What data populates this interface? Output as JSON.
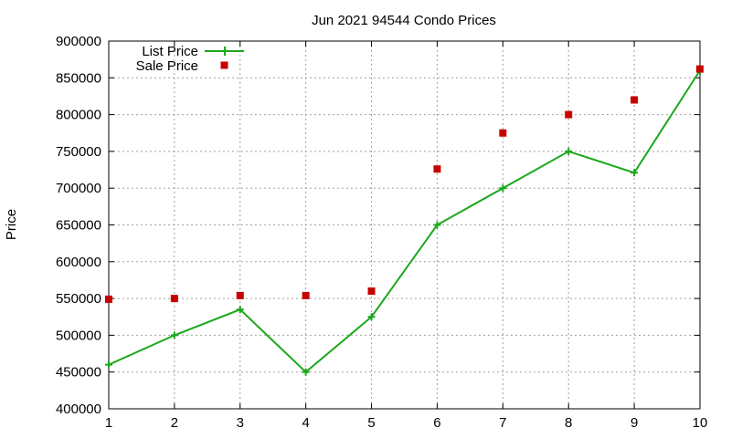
{
  "chart_data": {
    "type": "line",
    "title": "Jun 2021 94544 Condo Prices",
    "xlabel": "",
    "ylabel": "Price",
    "x": [
      1,
      2,
      3,
      4,
      5,
      6,
      7,
      8,
      9,
      10
    ],
    "xlim": [
      1,
      10
    ],
    "ylim": [
      400000,
      900000
    ],
    "xticks": [
      1,
      2,
      3,
      4,
      5,
      6,
      7,
      8,
      9,
      10
    ],
    "yticks": [
      400000,
      450000,
      500000,
      550000,
      600000,
      650000,
      700000,
      750000,
      800000,
      850000,
      900000
    ],
    "grid": true,
    "legend_position": "top-left",
    "series": [
      {
        "name": "List Price",
        "style": "line+cross",
        "color": "#1aa81a",
        "values": [
          460000,
          500000,
          535000,
          450000,
          525000,
          650000,
          700000,
          750000,
          721000,
          860000
        ]
      },
      {
        "name": "Sale Price",
        "style": "square-points",
        "color": "#c80000",
        "values": [
          549000,
          550000,
          554000,
          554000,
          560000,
          726000,
          775000,
          800000,
          820000,
          862000
        ]
      }
    ]
  }
}
